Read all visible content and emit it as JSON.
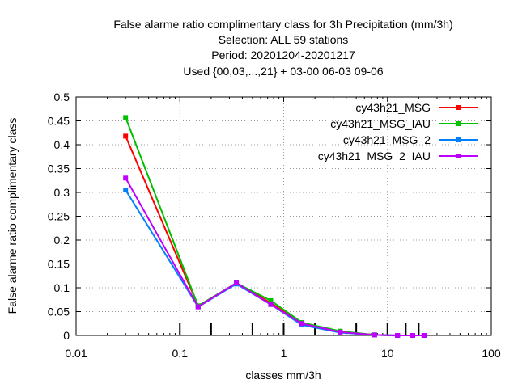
{
  "chart_data": {
    "type": "line",
    "title_lines": [
      "False alarme ratio complimentary class  for 3h Precipitation (mm/3h)",
      "Selection: ALL     59 stations",
      "Period: 20201204-20201217",
      "Used {00,03,...,21} + 03-00 06-03 09-06"
    ],
    "xlabel": "classes mm/3h",
    "ylabel": "False alarme ratio complimentary class",
    "xscale": "log",
    "xlim": [
      0.01,
      100
    ],
    "ylim": [
      0,
      0.5
    ],
    "x_ticks": [
      0.01,
      0.1,
      1,
      10,
      100
    ],
    "x_tick_labels": [
      "0.01",
      "0.1",
      "1",
      "10",
      "100"
    ],
    "y_ticks": [
      0,
      0.05,
      0.1,
      0.15,
      0.2,
      0.25,
      0.3,
      0.35,
      0.4,
      0.45,
      0.5
    ],
    "y_tick_labels": [
      "0",
      "0.05",
      "0.1",
      "0.15",
      "0.2",
      "0.25",
      "0.3",
      "0.35",
      "0.4",
      "0.45",
      "0.5"
    ],
    "grid": true,
    "class_markers_x": [
      0.1,
      0.2,
      0.5,
      1,
      2,
      5,
      10,
      15,
      20
    ],
    "legend_position": "top-right",
    "x": [
      0.03,
      0.15,
      0.35,
      0.75,
      1.5,
      3.5,
      7.5,
      12.5,
      17.5,
      22.5
    ],
    "series": [
      {
        "name": "cy43h21_MSG",
        "color": "#ff0000",
        "values": [
          0.418,
          0.062,
          0.11,
          0.068,
          0.025,
          0.008,
          0.001,
          0.0,
          0.0,
          0.0
        ]
      },
      {
        "name": "cy43h21_MSG_IAU",
        "color": "#00c000",
        "values": [
          0.457,
          0.062,
          0.11,
          0.073,
          0.027,
          0.009,
          0.001,
          0.0,
          0.0,
          0.0
        ]
      },
      {
        "name": "cy43h21_MSG_2",
        "color": "#0080ff",
        "values": [
          0.305,
          0.06,
          0.108,
          0.065,
          0.022,
          0.006,
          0.001,
          0.0,
          0.0,
          0.0
        ]
      },
      {
        "name": "cy43h21_MSG_2_IAU",
        "color": "#c000ff",
        "values": [
          0.33,
          0.06,
          0.11,
          0.065,
          0.025,
          0.007,
          0.001,
          0.0,
          0.0,
          0.0
        ]
      }
    ]
  }
}
